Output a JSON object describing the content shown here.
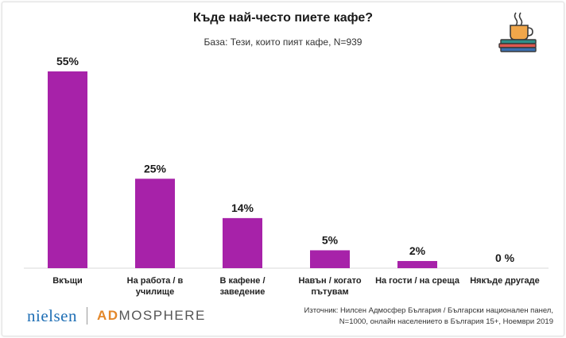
{
  "chart_data": {
    "type": "bar",
    "title": "Къде най-често пиете кафе?",
    "subtitle": "База: Тези, които пият кафе, N=939",
    "categories": [
      "Вкъщи",
      "На работа / в училище",
      "В кафене / заведение",
      "Навън / когато пътувам",
      "На гости / на среща",
      "Някъде другаде"
    ],
    "category_lines": [
      [
        "Вкъщи"
      ],
      [
        "На работа / в",
        "училище"
      ],
      [
        "В кафене /",
        "заведение"
      ],
      [
        "Навън / когато",
        "пътувам"
      ],
      [
        "На гости / на среща"
      ],
      [
        "Някъде другаде"
      ]
    ],
    "values": [
      55,
      25,
      14,
      5,
      2,
      0
    ],
    "value_labels": [
      "55%",
      "25%",
      "14%",
      "5%",
      "2%",
      "0 %"
    ],
    "bar_color": "#a722a9",
    "ylim": [
      0,
      55
    ],
    "grid": false,
    "legend": "none"
  },
  "footer": {
    "logo_left": "nielsen",
    "logo_right_accent": "AD",
    "logo_right_rest": "MOSPHERE",
    "source_line1": "Източник: Нилсен Адмосфер България / Български национален панел,",
    "source_line2": "N=1000, онлайн населението в България 15+, Ноември 2019"
  },
  "icon": "coffee-cup-on-books-icon"
}
